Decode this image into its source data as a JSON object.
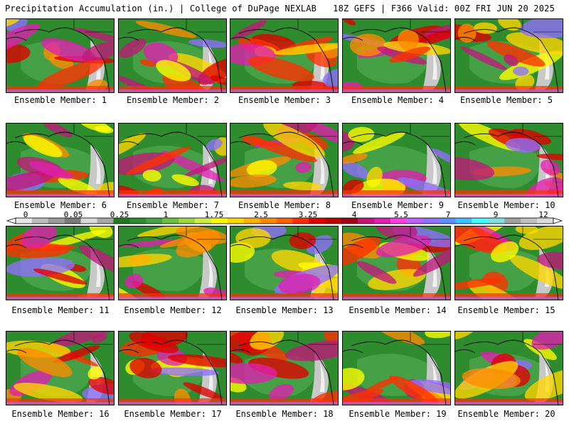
{
  "header": {
    "left": "Precipitation Accumulation (in.) | College of DuPage NEXLAB",
    "right": "18Z GEFS | F366 Valid: 00Z FRI JUN 20 2025"
  },
  "members": [
    "Ensemble Member: 1",
    "Ensemble Member: 2",
    "Ensemble Member: 3",
    "Ensemble Member: 4",
    "Ensemble Member: 5",
    "Ensemble Member: 6",
    "Ensemble Member: 7",
    "Ensemble Member: 8",
    "Ensemble Member: 9",
    "Ensemble Member: 10",
    "Ensemble Member: 11",
    "Ensemble Member: 12",
    "Ensemble Member: 13",
    "Ensemble Member: 14",
    "Ensemble Member: 15",
    "Ensemble Member: 16",
    "Ensemble Member: 17",
    "Ensemble Member: 18",
    "Ensemble Member: 19",
    "Ensemble Member: 20"
  ],
  "scale": {
    "labels": [
      "0",
      "0.05",
      "0.25",
      "1",
      "1.75",
      "2.5",
      "3.25",
      "4",
      "5.5",
      "7",
      "9",
      "12"
    ],
    "colors": [
      "#e6e6e6",
      "#bdbdbd",
      "#9a9a9a",
      "#7a7a7a",
      "#d9d9d9",
      "#a8a8a8",
      "#1f7a1f",
      "#2e8b2e",
      "#46a046",
      "#6cbf3c",
      "#9ed640",
      "#ccee44",
      "#ffff00",
      "#ffd700",
      "#ffb000",
      "#ff8c00",
      "#ff6000",
      "#ff3000",
      "#e00000",
      "#c00000",
      "#a00018",
      "#c0187a",
      "#e020b0",
      "#ff40e0",
      "#c060ff",
      "#9070ff",
      "#6090ff",
      "#40c0ff",
      "#40ffff",
      "#80e0e0",
      "#a0a0a0",
      "#c0c0c0",
      "#dcdcdc"
    ]
  }
}
